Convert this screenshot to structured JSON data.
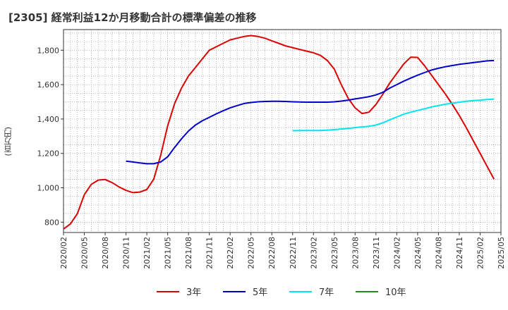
{
  "chart_data": {
    "type": "line",
    "title": "[2305]  経常利益12か月移動合計の標準偏差の推移",
    "ylabel": "(百万円)",
    "xlabel": "",
    "ylim": [
      740,
      1920
    ],
    "yticks": [
      800,
      1000,
      1200,
      1400,
      1600,
      1800
    ],
    "ytick_labels": [
      "800",
      "1,000",
      "1,200",
      "1,400",
      "1,600",
      "1,800"
    ],
    "x_labels": [
      "2020/02",
      "2020/05",
      "2020/08",
      "2020/11",
      "2021/02",
      "2021/05",
      "2021/08",
      "2021/11",
      "2022/02",
      "2022/05",
      "2022/08",
      "2022/11",
      "2023/02",
      "2023/05",
      "2023/08",
      "2023/11",
      "2024/02",
      "2024/05",
      "2024/08",
      "2024/11",
      "2025/02",
      "2025/05"
    ],
    "grid": true,
    "legend_position": "bottom",
    "series": [
      {
        "name": "3年",
        "color": "#dd0000",
        "points": [
          [
            0,
            760
          ],
          [
            1,
            790
          ],
          [
            2,
            850
          ],
          [
            3,
            960
          ],
          [
            4,
            1020
          ],
          [
            5,
            1045
          ],
          [
            6,
            1048
          ],
          [
            7,
            1030
          ],
          [
            8,
            1005
          ],
          [
            9,
            985
          ],
          [
            10,
            972
          ],
          [
            11,
            975
          ],
          [
            12,
            990
          ],
          [
            13,
            1050
          ],
          [
            14,
            1190
          ],
          [
            15,
            1360
          ],
          [
            16,
            1490
          ],
          [
            17,
            1580
          ],
          [
            18,
            1650
          ],
          [
            19,
            1700
          ],
          [
            20,
            1750
          ],
          [
            21,
            1800
          ],
          [
            22,
            1820
          ],
          [
            23,
            1840
          ],
          [
            24,
            1860
          ],
          [
            25,
            1870
          ],
          [
            26,
            1880
          ],
          [
            27,
            1885
          ],
          [
            28,
            1880
          ],
          [
            29,
            1870
          ],
          [
            30,
            1855
          ],
          [
            31,
            1840
          ],
          [
            32,
            1825
          ],
          [
            33,
            1815
          ],
          [
            34,
            1805
          ],
          [
            35,
            1795
          ],
          [
            36,
            1785
          ],
          [
            37,
            1770
          ],
          [
            38,
            1740
          ],
          [
            39,
            1690
          ],
          [
            40,
            1600
          ],
          [
            41,
            1520
          ],
          [
            42,
            1465
          ],
          [
            43,
            1432
          ],
          [
            44,
            1440
          ],
          [
            45,
            1485
          ],
          [
            46,
            1545
          ],
          [
            47,
            1610
          ],
          [
            48,
            1665
          ],
          [
            49,
            1720
          ],
          [
            50,
            1760
          ],
          [
            51,
            1758
          ],
          [
            52,
            1710
          ],
          [
            53,
            1655
          ],
          [
            54,
            1600
          ],
          [
            55,
            1545
          ],
          [
            56,
            1485
          ],
          [
            57,
            1420
          ],
          [
            58,
            1350
          ],
          [
            59,
            1275
          ],
          [
            60,
            1200
          ],
          [
            61,
            1125
          ],
          [
            62,
            1050
          ]
        ]
      },
      {
        "name": "5年",
        "color": "#0000cc",
        "points": [
          [
            9,
            1155
          ],
          [
            10,
            1150
          ],
          [
            11,
            1145
          ],
          [
            12,
            1140
          ],
          [
            13,
            1140
          ],
          [
            14,
            1150
          ],
          [
            15,
            1180
          ],
          [
            16,
            1235
          ],
          [
            17,
            1285
          ],
          [
            18,
            1330
          ],
          [
            19,
            1365
          ],
          [
            20,
            1390
          ],
          [
            21,
            1410
          ],
          [
            22,
            1430
          ],
          [
            23,
            1448
          ],
          [
            24,
            1465
          ],
          [
            25,
            1478
          ],
          [
            26,
            1490
          ],
          [
            27,
            1496
          ],
          [
            28,
            1500
          ],
          [
            29,
            1502
          ],
          [
            30,
            1503
          ],
          [
            31,
            1503
          ],
          [
            32,
            1502
          ],
          [
            33,
            1500
          ],
          [
            34,
            1499
          ],
          [
            35,
            1498
          ],
          [
            36,
            1498
          ],
          [
            37,
            1498
          ],
          [
            38,
            1498
          ],
          [
            39,
            1500
          ],
          [
            40,
            1504
          ],
          [
            41,
            1510
          ],
          [
            42,
            1517
          ],
          [
            43,
            1523
          ],
          [
            44,
            1530
          ],
          [
            45,
            1540
          ],
          [
            46,
            1555
          ],
          [
            47,
            1580
          ],
          [
            48,
            1600
          ],
          [
            49,
            1620
          ],
          [
            50,
            1638
          ],
          [
            51,
            1655
          ],
          [
            52,
            1670
          ],
          [
            53,
            1685
          ],
          [
            54,
            1695
          ],
          [
            55,
            1704
          ],
          [
            56,
            1711
          ],
          [
            57,
            1718
          ],
          [
            58,
            1723
          ],
          [
            59,
            1728
          ],
          [
            60,
            1733
          ],
          [
            61,
            1738
          ],
          [
            62,
            1740
          ]
        ]
      },
      {
        "name": "7年",
        "color": "#00e5ee",
        "points": [
          [
            33,
            1332
          ],
          [
            34,
            1333
          ],
          [
            35,
            1333
          ],
          [
            36,
            1333
          ],
          [
            37,
            1333
          ],
          [
            38,
            1335
          ],
          [
            39,
            1338
          ],
          [
            40,
            1342
          ],
          [
            41,
            1345
          ],
          [
            42,
            1350
          ],
          [
            43,
            1354
          ],
          [
            44,
            1358
          ],
          [
            45,
            1365
          ],
          [
            46,
            1378
          ],
          [
            47,
            1395
          ],
          [
            48,
            1412
          ],
          [
            49,
            1428
          ],
          [
            50,
            1440
          ],
          [
            51,
            1450
          ],
          [
            52,
            1460
          ],
          [
            53,
            1470
          ],
          [
            54,
            1478
          ],
          [
            55,
            1486
          ],
          [
            56,
            1492
          ],
          [
            57,
            1498
          ],
          [
            58,
            1503
          ],
          [
            59,
            1507
          ],
          [
            60,
            1510
          ],
          [
            61,
            1513
          ],
          [
            62,
            1516
          ]
        ]
      },
      {
        "name": "10年",
        "color": "#228b22",
        "points": []
      }
    ]
  }
}
